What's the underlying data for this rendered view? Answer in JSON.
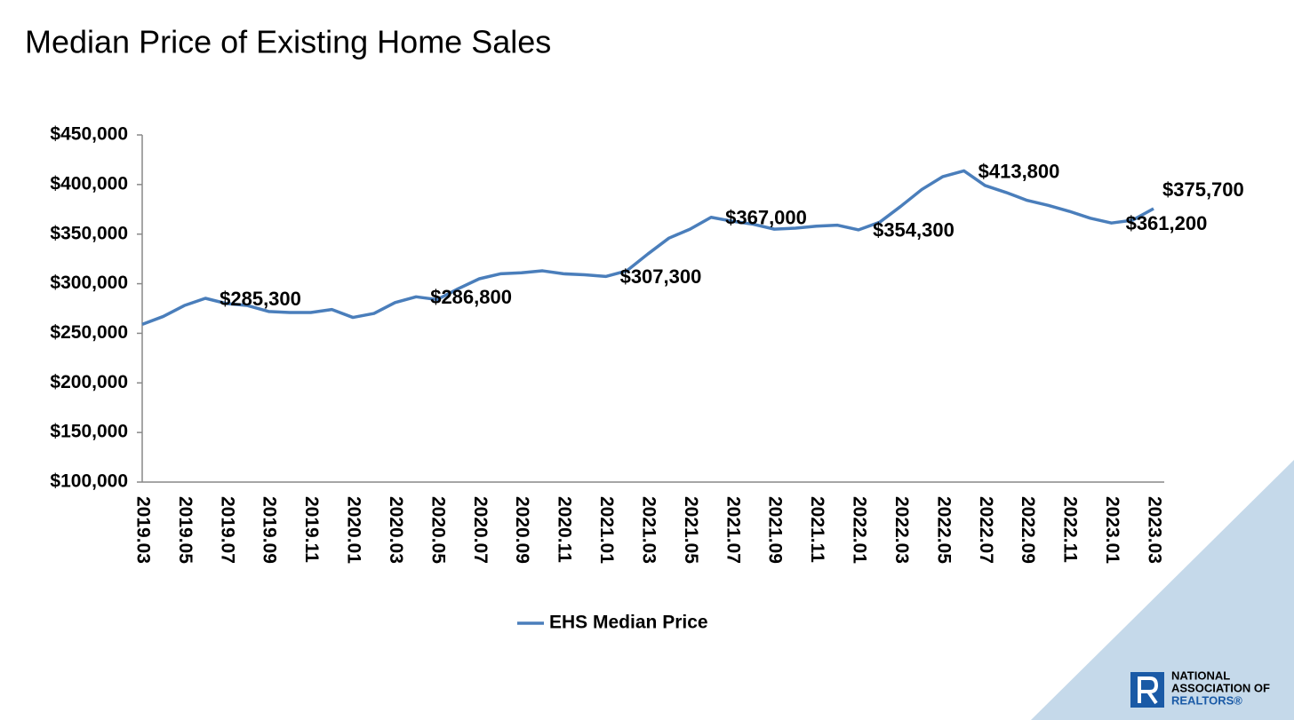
{
  "chart_data": {
    "type": "line",
    "title": "Median Price of Existing Home Sales",
    "categories": [
      "2019.03",
      null,
      "2019.05",
      null,
      "2019.07",
      null,
      "2019.09",
      null,
      "2019.11",
      null,
      "2020.01",
      null,
      "2020.03",
      null,
      "2020.05",
      null,
      "2020.07",
      null,
      "2020.09",
      null,
      "2020.11",
      null,
      "2021.01",
      null,
      "2021.03",
      null,
      "2021.05",
      null,
      "2021.07",
      null,
      "2021.09",
      null,
      "2021.11",
      null,
      "2022.01",
      null,
      "2022.03",
      null,
      "2022.05",
      null,
      "2022.07",
      null,
      "2022.09",
      null,
      "2022.11",
      null,
      "2023.01",
      null,
      "2023.03"
    ],
    "series": [
      {
        "name": "EHS Median Price",
        "color": "#4a7ebb",
        "values": [
          259000,
          267000,
          278000,
          285300,
          280000,
          278000,
          272000,
          271000,
          271000,
          274000,
          266000,
          270000,
          281000,
          286800,
          284000,
          295000,
          305000,
          310000,
          311000,
          313000,
          310000,
          309000,
          307300,
          313000,
          330000,
          346000,
          355000,
          367000,
          363000,
          360000,
          355000,
          356000,
          358000,
          359000,
          354300,
          362000,
          378000,
          395000,
          408000,
          413800,
          399000,
          392000,
          384000,
          379000,
          373000,
          366000,
          361200,
          364000,
          375700
        ],
        "value_labels": [
          null,
          null,
          null,
          "$285,300",
          null,
          null,
          null,
          null,
          null,
          null,
          null,
          null,
          null,
          "$286,800",
          null,
          null,
          null,
          null,
          null,
          null,
          null,
          null,
          "$307,300",
          null,
          null,
          null,
          null,
          "$367,000",
          null,
          null,
          null,
          null,
          null,
          null,
          "$354,300",
          null,
          null,
          null,
          null,
          "$413,800",
          null,
          null,
          null,
          null,
          null,
          null,
          "$361,200",
          null,
          "$375,700"
        ]
      }
    ],
    "ylim": [
      100000,
      450000
    ],
    "yticks": [
      {
        "value": 100000,
        "label": "$100,000"
      },
      {
        "value": 150000,
        "label": "$150,000"
      },
      {
        "value": 200000,
        "label": "$200,000"
      },
      {
        "value": 250000,
        "label": "$250,000"
      },
      {
        "value": 300000,
        "label": "$300,000"
      },
      {
        "value": 350000,
        "label": "$350,000"
      },
      {
        "value": 400000,
        "label": "$400,000"
      },
      {
        "value": 450000,
        "label": "$450,000"
      }
    ],
    "legend": "bottom",
    "grid": false
  },
  "logo": [
    "NATIONAL",
    "ASSOCIATION OF",
    "REALTORS®"
  ]
}
